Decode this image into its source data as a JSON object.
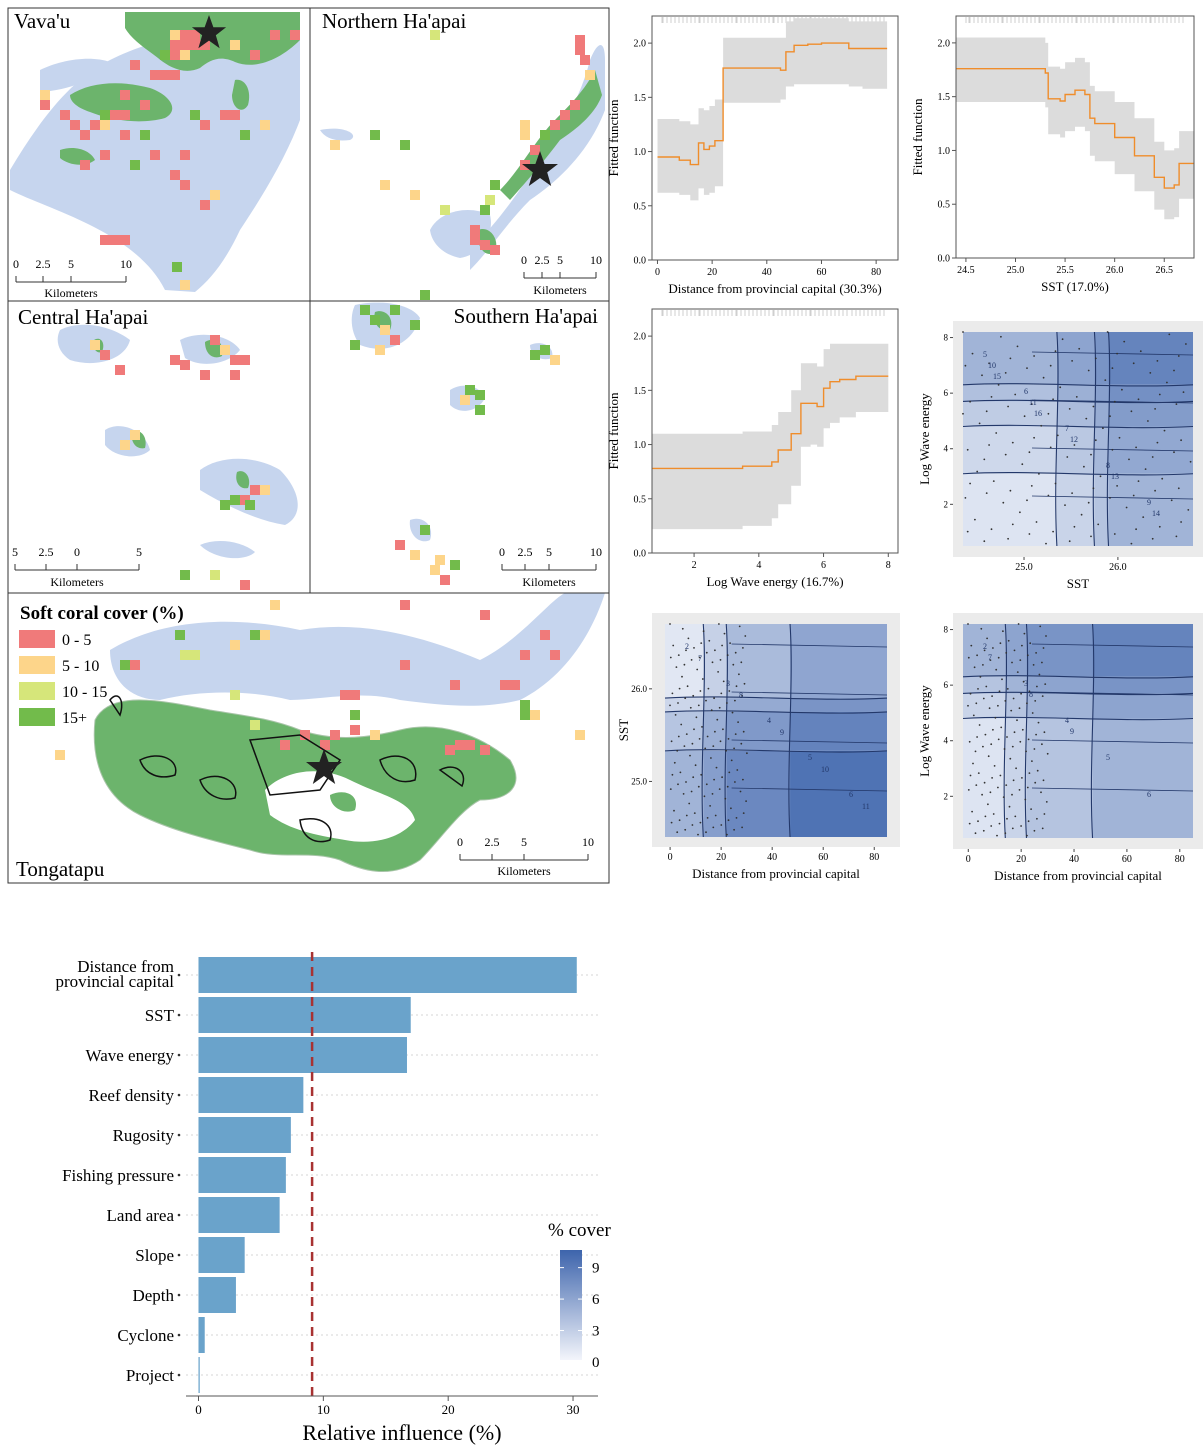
{
  "maps": {
    "panels": [
      {
        "name": "Vava'u"
      },
      {
        "name": "Northern Ha'apai"
      },
      {
        "name": "Central Ha'apai"
      },
      {
        "name": "Southern Ha'apai"
      },
      {
        "name": "Tongatapu"
      }
    ],
    "scales": [
      {
        "ticks": [
          "0",
          "2.5",
          "5",
          "10"
        ],
        "unit": "Kilometers"
      },
      {
        "ticks": [
          "0",
          "2.5",
          "5",
          "10"
        ],
        "unit": "Kilometers"
      },
      {
        "ticks": [
          "5",
          "2.5",
          "0",
          "5"
        ],
        "unit": "Kilometers"
      },
      {
        "ticks": [
          "0",
          "2.5",
          "5",
          "10"
        ],
        "unit": "Kilometers"
      },
      {
        "ticks": [
          "0",
          "2.5",
          "5",
          "10"
        ],
        "unit": "Kilometers"
      }
    ],
    "legend": {
      "title": "Soft coral cover (%)",
      "items": [
        {
          "label": "0 - 5",
          "color": "#f07a7a"
        },
        {
          "label": "5 - 10",
          "color": "#fdd58a"
        },
        {
          "label": "10 - 15",
          "color": "#d6e67a"
        },
        {
          "label": "15+",
          "color": "#72bb4b"
        }
      ]
    },
    "colors": {
      "land": "#6cb46c",
      "reef": "#b8cbe9",
      "star": "#222222"
    }
  },
  "chart_data": [
    {
      "type": "line",
      "xlabel": "Distance from provincial capital (30.3%)",
      "ylabel": "Fitted function",
      "xlim": [
        -2,
        88
      ],
      "ylim": [
        0,
        2.25
      ],
      "xticks": [
        "0",
        "20",
        "40",
        "60",
        "80"
      ],
      "xtick_values": [
        0,
        20,
        40,
        60,
        80
      ],
      "yticks": [
        "0.0",
        "0.5",
        "1.0",
        "1.5",
        "2.0"
      ],
      "ytick_values": [
        0,
        0.5,
        1,
        1.5,
        2
      ],
      "x": [
        0,
        5,
        8,
        12,
        15,
        17,
        19,
        21,
        24,
        30,
        40,
        45,
        47,
        50,
        55,
        60,
        65,
        70,
        75,
        80,
        84
      ],
      "y": [
        0.95,
        0.95,
        0.92,
        0.88,
        1.08,
        1.02,
        1.05,
        1.1,
        1.77,
        1.77,
        1.77,
        1.75,
        1.92,
        1.98,
        1.99,
        2.0,
        2.0,
        1.95,
        1.95,
        1.95,
        1.95
      ],
      "lower": [
        0.62,
        0.62,
        0.6,
        0.55,
        0.66,
        0.6,
        0.62,
        0.68,
        1.45,
        1.45,
        1.45,
        1.48,
        1.6,
        1.62,
        1.62,
        1.62,
        1.62,
        1.6,
        1.58,
        1.58,
        1.58
      ],
      "upper": [
        1.3,
        1.3,
        1.28,
        1.25,
        1.4,
        1.38,
        1.42,
        1.48,
        2.05,
        2.05,
        2.05,
        2.05,
        2.2,
        2.23,
        2.23,
        2.23,
        2.23,
        2.2,
        2.2,
        2.2,
        2.2
      ],
      "line_color": "#ef8d2b",
      "band_color": "#dcdcdc"
    },
    {
      "type": "line",
      "xlabel": "SST (17.0%)",
      "ylabel": "Fitted function",
      "xlim": [
        24.4,
        26.8
      ],
      "ylim": [
        0,
        2.25
      ],
      "xticks": [
        "24.5",
        "25.0",
        "25.5",
        "26.0",
        "26.5"
      ],
      "xtick_values": [
        24.5,
        25.0,
        25.5,
        26.0,
        26.5
      ],
      "yticks": [
        "0.0",
        "0.5",
        "1.0",
        "1.5",
        "2.0"
      ],
      "ytick_values": [
        0,
        0.5,
        1,
        1.5,
        2
      ],
      "x": [
        24.4,
        24.7,
        25.0,
        25.2,
        25.3,
        25.33,
        25.45,
        25.5,
        25.6,
        25.7,
        25.75,
        25.8,
        26.0,
        26.2,
        26.4,
        26.5,
        26.6,
        26.65,
        26.8
      ],
      "y": [
        1.76,
        1.76,
        1.76,
        1.76,
        1.72,
        1.48,
        1.46,
        1.52,
        1.56,
        1.52,
        1.3,
        1.25,
        1.12,
        0.95,
        0.75,
        0.65,
        0.68,
        0.88,
        0.88
      ],
      "lower": [
        1.45,
        1.45,
        1.45,
        1.45,
        1.4,
        1.15,
        1.12,
        1.18,
        1.22,
        1.18,
        0.95,
        0.9,
        0.78,
        0.62,
        0.45,
        0.36,
        0.38,
        0.55,
        0.55
      ],
      "upper": [
        2.05,
        2.05,
        2.05,
        2.05,
        2.0,
        1.78,
        1.76,
        1.82,
        1.86,
        1.82,
        1.6,
        1.55,
        1.45,
        1.3,
        1.08,
        1.0,
        1.02,
        1.18,
        1.18
      ],
      "line_color": "#ef8d2b",
      "band_color": "#dcdcdc"
    },
    {
      "type": "line",
      "xlabel": "Log Wave energy (16.7%)",
      "ylabel": "Fitted function",
      "xlim": [
        0.7,
        8.3
      ],
      "ylim": [
        0,
        2.25
      ],
      "xticks": [
        "2",
        "4",
        "6",
        "8"
      ],
      "xtick_values": [
        2,
        4,
        6,
        8
      ],
      "yticks": [
        "0.0",
        "0.5",
        "1.0",
        "1.5",
        "2.0"
      ],
      "ytick_values": [
        0,
        0.5,
        1,
        1.5,
        2
      ],
      "x": [
        0.7,
        2,
        3,
        3.5,
        4,
        4.4,
        4.6,
        5,
        5.3,
        5.6,
        5.8,
        6,
        6.2,
        6.5,
        7,
        7.5,
        8
      ],
      "y": [
        0.78,
        0.78,
        0.78,
        0.8,
        0.8,
        0.84,
        0.95,
        1.1,
        1.38,
        1.38,
        1.35,
        1.52,
        1.58,
        1.6,
        1.63,
        1.63,
        1.63
      ],
      "lower": [
        0.22,
        0.22,
        0.22,
        0.25,
        0.25,
        0.32,
        0.45,
        0.62,
        0.98,
        1.0,
        0.98,
        1.15,
        1.2,
        1.25,
        1.3,
        1.3,
        1.3
      ],
      "upper": [
        1.1,
        1.1,
        1.1,
        1.12,
        1.12,
        1.18,
        1.3,
        1.5,
        1.75,
        1.75,
        1.72,
        1.88,
        1.93,
        1.93,
        1.93,
        1.93,
        1.93
      ],
      "line_color": "#ef8d2b",
      "band_color": "#dcdcdc"
    },
    {
      "type": "heatmap",
      "xlabel": "SST",
      "ylabel": "Log Wave energy",
      "xlim": [
        24.35,
        26.8
      ],
      "ylim": [
        0.5,
        8.2
      ],
      "xticks": [
        "25.0",
        "26.0"
      ],
      "xtick_values": [
        25.0,
        26.0
      ],
      "yticks": [
        "2",
        "4",
        "6",
        "8"
      ],
      "ytick_values": [
        2,
        4,
        6,
        8
      ],
      "x_breaks": [
        25.35,
        25.75,
        25.9
      ],
      "y_breaks": [
        3.1,
        4.8,
        5.7,
        6.3
      ],
      "contour_labels": [
        "5",
        "6",
        "7",
        "8",
        "9",
        "10",
        "11",
        "12",
        "13",
        "14",
        "15",
        "16"
      ]
    },
    {
      "type": "heatmap",
      "xlabel": "Distance from provincial capital",
      "ylabel": "SST",
      "xlim": [
        -2,
        85
      ],
      "ylim": [
        24.4,
        26.7
      ],
      "xticks": [
        "0",
        "20",
        "40",
        "60",
        "80"
      ],
      "xtick_values": [
        0,
        20,
        40,
        60,
        80
      ],
      "yticks": [
        "25.0",
        "26.0"
      ],
      "ytick_values": [
        25.0,
        26.0
      ],
      "x_breaks": [
        13,
        22,
        47
      ],
      "y_breaks": [
        25.33,
        25.75,
        25.9
      ],
      "contour_labels": [
        "2",
        "3",
        "4",
        "5",
        "6",
        "7",
        "8",
        "9",
        "10",
        "11"
      ]
    },
    {
      "type": "heatmap",
      "xlabel": "Distance from provincial capital",
      "ylabel": "Log Wave energy",
      "xlim": [
        -2,
        85
      ],
      "ylim": [
        0.5,
        8.2
      ],
      "xticks": [
        "0",
        "20",
        "40",
        "60",
        "80"
      ],
      "xtick_values": [
        0,
        20,
        40,
        60,
        80
      ],
      "yticks": [
        "2",
        "4",
        "6",
        "8"
      ],
      "ytick_values": [
        2,
        4,
        6,
        8
      ],
      "x_breaks": [
        14,
        22,
        47
      ],
      "y_breaks": [
        4.8,
        5.7,
        6.3
      ],
      "contour_labels": [
        "2",
        "3",
        "4",
        "5",
        "6",
        "7",
        "8",
        "9"
      ]
    },
    {
      "type": "bar",
      "orientation": "horizontal",
      "xlabel": "Relative influence (%)",
      "categories": [
        "Distance from provincial capital",
        "SST",
        "Wave energy",
        "Reef density",
        "Rugosity",
        "Fishing pressure",
        "Land area",
        "Slope",
        "Depth",
        "Cyclone",
        "Project"
      ],
      "values": [
        30.3,
        17.0,
        16.7,
        8.4,
        7.4,
        7.0,
        6.5,
        3.7,
        3.0,
        0.5,
        0.1
      ],
      "xlim": [
        -1,
        32
      ],
      "xticks": [
        "0",
        "10",
        "20",
        "30"
      ],
      "xtick_values": [
        0,
        10,
        20,
        30
      ],
      "reference_line": 9.1,
      "bar_color": "#6aa3cb",
      "reference_color": "#a83232"
    }
  ],
  "colorbar": {
    "title": "% cover",
    "ticks": [
      "0",
      "3",
      "6",
      "9"
    ],
    "tick_values": [
      0,
      3,
      6,
      9
    ],
    "low_color": "#f3f5fb",
    "high_color": "#3d64ac"
  }
}
